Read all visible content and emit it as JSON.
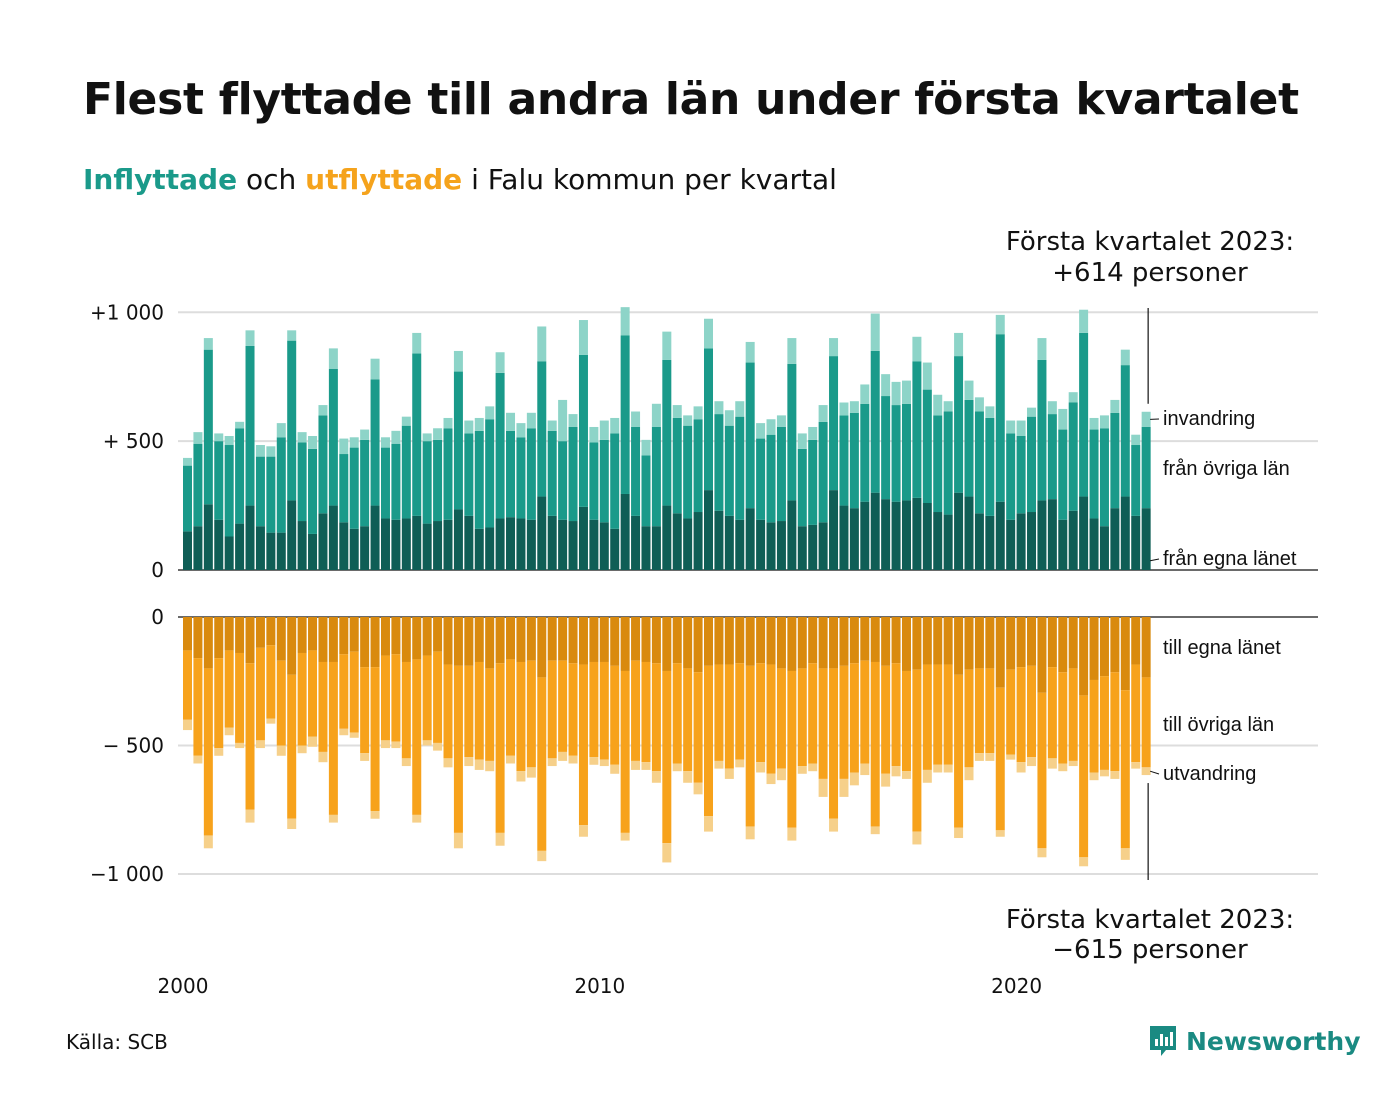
{
  "title": "Flest flyttade till andra län under första kvartalet",
  "subtitle": {
    "in_word": "Inflyttade",
    "mid": " och ",
    "out_word": "utflyttade",
    "rest": " i Falu kommun per kvartal"
  },
  "source": "Källa: SCB",
  "brand": "Newsworthy",
  "colors": {
    "in_own": "#0f5e56",
    "in_other": "#1a9a8a",
    "in_immig": "#8dd4c8",
    "out_own": "#d98a0e",
    "out_other": "#f7a21b",
    "out_emig": "#f6d08a",
    "grid": "#dddddd"
  },
  "chart_data": {
    "type": "bar",
    "stacked": true,
    "x_axis": {
      "ticks": [
        "2000",
        "2010",
        "2020"
      ]
    },
    "top_panel": {
      "ylim": [
        0,
        1020
      ],
      "ticks": [
        {
          "value": 1000,
          "label": "+1 000"
        },
        {
          "value": 500,
          "label": "+  500"
        },
        {
          "value": 0,
          "label": "0"
        }
      ],
      "series_labels": [
        "från egna länet",
        "från övriga län",
        "invandring"
      ],
      "annotation": [
        "Första kvartalet 2023:",
        "+614 personer"
      ]
    },
    "bottom_panel": {
      "ylim": [
        -1000,
        0
      ],
      "ticks": [
        {
          "value": 0,
          "label": "0"
        },
        {
          "value": -500,
          "label": "−  500"
        },
        {
          "value": -1000,
          "label": "−1 000"
        }
      ],
      "series_labels": [
        "till egna länet",
        "till övriga län",
        "utvandring"
      ],
      "annotation": [
        "Första kvartalet 2023:",
        "−615 personer"
      ]
    },
    "quarters": [
      {
        "q": "2000 Q1",
        "in": [
          150,
          255,
          30
        ],
        "out": [
          130,
          270,
          40
        ]
      },
      {
        "q": "2000 Q2",
        "in": [
          170,
          320,
          45
        ],
        "out": [
          160,
          380,
          30
        ]
      },
      {
        "q": "2000 Q3",
        "in": [
          255,
          600,
          45
        ],
        "out": [
          200,
          650,
          50
        ]
      },
      {
        "q": "2000 Q4",
        "in": [
          195,
          305,
          30
        ],
        "out": [
          160,
          350,
          30
        ]
      },
      {
        "q": "2001 Q1",
        "in": [
          130,
          355,
          35
        ],
        "out": [
          130,
          300,
          30
        ]
      },
      {
        "q": "2001 Q2",
        "in": [
          180,
          370,
          25
        ],
        "out": [
          140,
          350,
          20
        ]
      },
      {
        "q": "2001 Q3",
        "in": [
          250,
          620,
          60
        ],
        "out": [
          180,
          570,
          50
        ]
      },
      {
        "q": "2001 Q4",
        "in": [
          170,
          270,
          45
        ],
        "out": [
          120,
          360,
          30
        ]
      },
      {
        "q": "2002 Q1",
        "in": [
          145,
          295,
          40
        ],
        "out": [
          110,
          285,
          20
        ]
      },
      {
        "q": "2002 Q2",
        "in": [
          145,
          370,
          55
        ],
        "out": [
          170,
          330,
          40
        ]
      },
      {
        "q": "2002 Q3",
        "in": [
          270,
          620,
          40
        ],
        "out": [
          225,
          560,
          40
        ]
      },
      {
        "q": "2002 Q4",
        "in": [
          190,
          305,
          40
        ],
        "out": [
          140,
          360,
          30
        ]
      },
      {
        "q": "2003 Q1",
        "in": [
          140,
          330,
          50
        ],
        "out": [
          130,
          335,
          40
        ]
      },
      {
        "q": "2003 Q2",
        "in": [
          220,
          380,
          40
        ],
        "out": [
          175,
          350,
          40
        ]
      },
      {
        "q": "2003 Q3",
        "in": [
          250,
          530,
          80
        ],
        "out": [
          175,
          595,
          30
        ]
      },
      {
        "q": "2003 Q4",
        "in": [
          185,
          265,
          60
        ],
        "out": [
          145,
          290,
          25
        ]
      },
      {
        "q": "2004 Q1",
        "in": [
          160,
          315,
          40
        ],
        "out": [
          135,
          315,
          20
        ]
      },
      {
        "q": "2004 Q2",
        "in": [
          170,
          335,
          40
        ],
        "out": [
          195,
          335,
          30
        ]
      },
      {
        "q": "2004 Q3",
        "in": [
          250,
          490,
          80
        ],
        "out": [
          195,
          560,
          30
        ]
      },
      {
        "q": "2004 Q4",
        "in": [
          200,
          275,
          40
        ],
        "out": [
          150,
          330,
          30
        ]
      },
      {
        "q": "2005 Q1",
        "in": [
          195,
          295,
          50
        ],
        "out": [
          145,
          340,
          25
        ]
      },
      {
        "q": "2005 Q2",
        "in": [
          200,
          360,
          35
        ],
        "out": [
          175,
          375,
          30
        ]
      },
      {
        "q": "2005 Q3",
        "in": [
          210,
          630,
          80
        ],
        "out": [
          165,
          605,
          30
        ]
      },
      {
        "q": "2005 Q4",
        "in": [
          180,
          320,
          30
        ],
        "out": [
          150,
          330,
          20
        ]
      },
      {
        "q": "2006 Q1",
        "in": [
          190,
          315,
          45
        ],
        "out": [
          135,
          355,
          30
        ]
      },
      {
        "q": "2006 Q2",
        "in": [
          195,
          355,
          40
        ],
        "out": [
          185,
          365,
          35
        ]
      },
      {
        "q": "2006 Q3",
        "in": [
          235,
          535,
          80
        ],
        "out": [
          190,
          650,
          60
        ]
      },
      {
        "q": "2006 Q4",
        "in": [
          210,
          320,
          50
        ],
        "out": [
          190,
          355,
          35
        ]
      },
      {
        "q": "2007 Q1",
        "in": [
          160,
          380,
          50
        ],
        "out": [
          175,
          380,
          40
        ]
      },
      {
        "q": "2007 Q2",
        "in": [
          165,
          420,
          50
        ],
        "out": [
          200,
          360,
          40
        ]
      },
      {
        "q": "2007 Q3",
        "in": [
          200,
          565,
          80
        ],
        "out": [
          180,
          660,
          50
        ]
      },
      {
        "q": "2007 Q4",
        "in": [
          205,
          335,
          70
        ],
        "out": [
          165,
          375,
          30
        ]
      },
      {
        "q": "2008 Q1",
        "in": [
          200,
          315,
          55
        ],
        "out": [
          175,
          425,
          40
        ]
      },
      {
        "q": "2008 Q2",
        "in": [
          195,
          355,
          60
        ],
        "out": [
          170,
          415,
          40
        ]
      },
      {
        "q": "2008 Q3",
        "in": [
          285,
          525,
          135
        ],
        "out": [
          235,
          675,
          40
        ]
      },
      {
        "q": "2008 Q4",
        "in": [
          210,
          330,
          40
        ],
        "out": [
          170,
          380,
          30
        ]
      },
      {
        "q": "2009 Q1",
        "in": [
          195,
          305,
          160
        ],
        "out": [
          170,
          355,
          35
        ]
      },
      {
        "q": "2009 Q2",
        "in": [
          190,
          365,
          50
        ],
        "out": [
          180,
          360,
          30
        ]
      },
      {
        "q": "2009 Q3",
        "in": [
          245,
          590,
          135
        ],
        "out": [
          185,
          625,
          45
        ]
      },
      {
        "q": "2009 Q4",
        "in": [
          195,
          300,
          60
        ],
        "out": [
          175,
          370,
          30
        ]
      },
      {
        "q": "2010 Q1",
        "in": [
          185,
          320,
          75
        ],
        "out": [
          175,
          380,
          25
        ]
      },
      {
        "q": "2010 Q2",
        "in": [
          160,
          370,
          60
        ],
        "out": [
          190,
          385,
          35
        ]
      },
      {
        "q": "2010 Q3",
        "in": [
          295,
          615,
          110
        ],
        "out": [
          210,
          630,
          30
        ]
      },
      {
        "q": "2010 Q4",
        "in": [
          210,
          345,
          60
        ],
        "out": [
          170,
          390,
          35
        ]
      },
      {
        "q": "2011 Q1",
        "in": [
          170,
          275,
          60
        ],
        "out": [
          175,
          390,
          30
        ]
      },
      {
        "q": "2011 Q2",
        "in": [
          170,
          385,
          90
        ],
        "out": [
          180,
          420,
          45
        ]
      },
      {
        "q": "2011 Q3",
        "in": [
          250,
          565,
          110
        ],
        "out": [
          210,
          670,
          75
        ]
      },
      {
        "q": "2011 Q4",
        "in": [
          220,
          370,
          50
        ],
        "out": [
          180,
          390,
          30
        ]
      },
      {
        "q": "2012 Q1",
        "in": [
          200,
          360,
          40
        ],
        "out": [
          200,
          400,
          45
        ]
      },
      {
        "q": "2012 Q2",
        "in": [
          225,
          360,
          50
        ],
        "out": [
          215,
          430,
          45
        ]
      },
      {
        "q": "2012 Q3",
        "in": [
          310,
          550,
          115
        ],
        "out": [
          190,
          585,
          60
        ]
      },
      {
        "q": "2012 Q4",
        "in": [
          230,
          375,
          50
        ],
        "out": [
          185,
          375,
          30
        ]
      },
      {
        "q": "2013 Q1",
        "in": [
          210,
          350,
          60
        ],
        "out": [
          185,
          405,
          40
        ]
      },
      {
        "q": "2013 Q2",
        "in": [
          195,
          400,
          60
        ],
        "out": [
          180,
          375,
          30
        ]
      },
      {
        "q": "2013 Q3",
        "in": [
          240,
          565,
          80
        ],
        "out": [
          190,
          625,
          50
        ]
      },
      {
        "q": "2013 Q4",
        "in": [
          195,
          315,
          60
        ],
        "out": [
          180,
          385,
          40
        ]
      },
      {
        "q": "2014 Q1",
        "in": [
          185,
          340,
          60
        ],
        "out": [
          185,
          425,
          40
        ]
      },
      {
        "q": "2014 Q2",
        "in": [
          190,
          365,
          45
        ],
        "out": [
          200,
          390,
          45
        ]
      },
      {
        "q": "2014 Q3",
        "in": [
          270,
          530,
          100
        ],
        "out": [
          210,
          610,
          50
        ]
      },
      {
        "q": "2014 Q4",
        "in": [
          170,
          300,
          60
        ],
        "out": [
          200,
          380,
          30
        ]
      },
      {
        "q": "2015 Q1",
        "in": [
          175,
          330,
          50
        ],
        "out": [
          180,
          390,
          30
        ]
      },
      {
        "q": "2015 Q2",
        "in": [
          185,
          390,
          65
        ],
        "out": [
          200,
          430,
          70
        ]
      },
      {
        "q": "2015 Q3",
        "in": [
          310,
          520,
          70
        ],
        "out": [
          200,
          585,
          50
        ]
      },
      {
        "q": "2015 Q4",
        "in": [
          250,
          350,
          50
        ],
        "out": [
          190,
          440,
          70
        ]
      },
      {
        "q": "2016 Q1",
        "in": [
          240,
          370,
          45
        ],
        "out": [
          180,
          425,
          50
        ]
      },
      {
        "q": "2016 Q2",
        "in": [
          265,
          380,
          75
        ],
        "out": [
          170,
          400,
          45
        ]
      },
      {
        "q": "2016 Q3",
        "in": [
          300,
          550,
          145
        ],
        "out": [
          175,
          640,
          30
        ]
      },
      {
        "q": "2016 Q4",
        "in": [
          275,
          400,
          85
        ],
        "out": [
          190,
          420,
          50
        ]
      },
      {
        "q": "2017 Q1",
        "in": [
          265,
          375,
          90
        ],
        "out": [
          180,
          400,
          40
        ]
      },
      {
        "q": "2017 Q2",
        "in": [
          270,
          375,
          90
        ],
        "out": [
          210,
          390,
          30
        ]
      },
      {
        "q": "2017 Q3",
        "in": [
          280,
          530,
          95
        ],
        "out": [
          205,
          630,
          50
        ]
      },
      {
        "q": "2017 Q4",
        "in": [
          260,
          440,
          105
        ],
        "out": [
          185,
          410,
          50
        ]
      },
      {
        "q": "2018 Q1",
        "in": [
          225,
          375,
          80
        ],
        "out": [
          185,
          390,
          30
        ]
      },
      {
        "q": "2018 Q2",
        "in": [
          215,
          400,
          40
        ],
        "out": [
          185,
          390,
          30
        ]
      },
      {
        "q": "2018 Q3",
        "in": [
          300,
          530,
          90
        ],
        "out": [
          225,
          595,
          40
        ]
      },
      {
        "q": "2018 Q4",
        "in": [
          285,
          375,
          75
        ],
        "out": [
          205,
          380,
          50
        ]
      },
      {
        "q": "2019 Q1",
        "in": [
          220,
          395,
          55
        ],
        "out": [
          200,
          330,
          30
        ]
      },
      {
        "q": "2019 Q2",
        "in": [
          210,
          380,
          45
        ],
        "out": [
          200,
          330,
          30
        ]
      },
      {
        "q": "2019 Q3",
        "in": [
          265,
          650,
          75
        ],
        "out": [
          275,
          555,
          25
        ]
      },
      {
        "q": "2019 Q4",
        "in": [
          195,
          335,
          50
        ],
        "out": [
          205,
          330,
          20
        ]
      },
      {
        "q": "2020 Q1",
        "in": [
          220,
          300,
          60
        ],
        "out": [
          195,
          370,
          40
        ]
      },
      {
        "q": "2020 Q2",
        "in": [
          225,
          370,
          35
        ],
        "out": [
          190,
          355,
          35
        ]
      },
      {
        "q": "2020 Q3",
        "in": [
          270,
          545,
          85
        ],
        "out": [
          295,
          605,
          35
        ]
      },
      {
        "q": "2020 Q4",
        "in": [
          275,
          330,
          50
        ],
        "out": [
          195,
          355,
          40
        ]
      },
      {
        "q": "2021 Q1",
        "in": [
          195,
          350,
          80
        ],
        "out": [
          215,
          355,
          30
        ]
      },
      {
        "q": "2021 Q2",
        "in": [
          230,
          420,
          40
        ],
        "out": [
          200,
          360,
          20
        ]
      },
      {
        "q": "2021 Q3",
        "in": [
          285,
          635,
          90
        ],
        "out": [
          305,
          630,
          35
        ]
      },
      {
        "q": "2021 Q4",
        "in": [
          200,
          345,
          45
        ],
        "out": [
          245,
          360,
          30
        ]
      },
      {
        "q": "2022 Q1",
        "in": [
          170,
          380,
          50
        ],
        "out": [
          230,
          365,
          25
        ]
      },
      {
        "q": "2022 Q2",
        "in": [
          240,
          370,
          50
        ],
        "out": [
          215,
          385,
          30
        ]
      },
      {
        "q": "2022 Q3",
        "in": [
          285,
          510,
          60
        ],
        "out": [
          285,
          615,
          45
        ]
      },
      {
        "q": "2022 Q4",
        "in": [
          210,
          275,
          40
        ],
        "out": [
          185,
          380,
          25
        ]
      },
      {
        "q": "2023 Q1",
        "in": [
          240,
          315,
          59
        ],
        "out": [
          235,
          350,
          30
        ]
      }
    ]
  }
}
